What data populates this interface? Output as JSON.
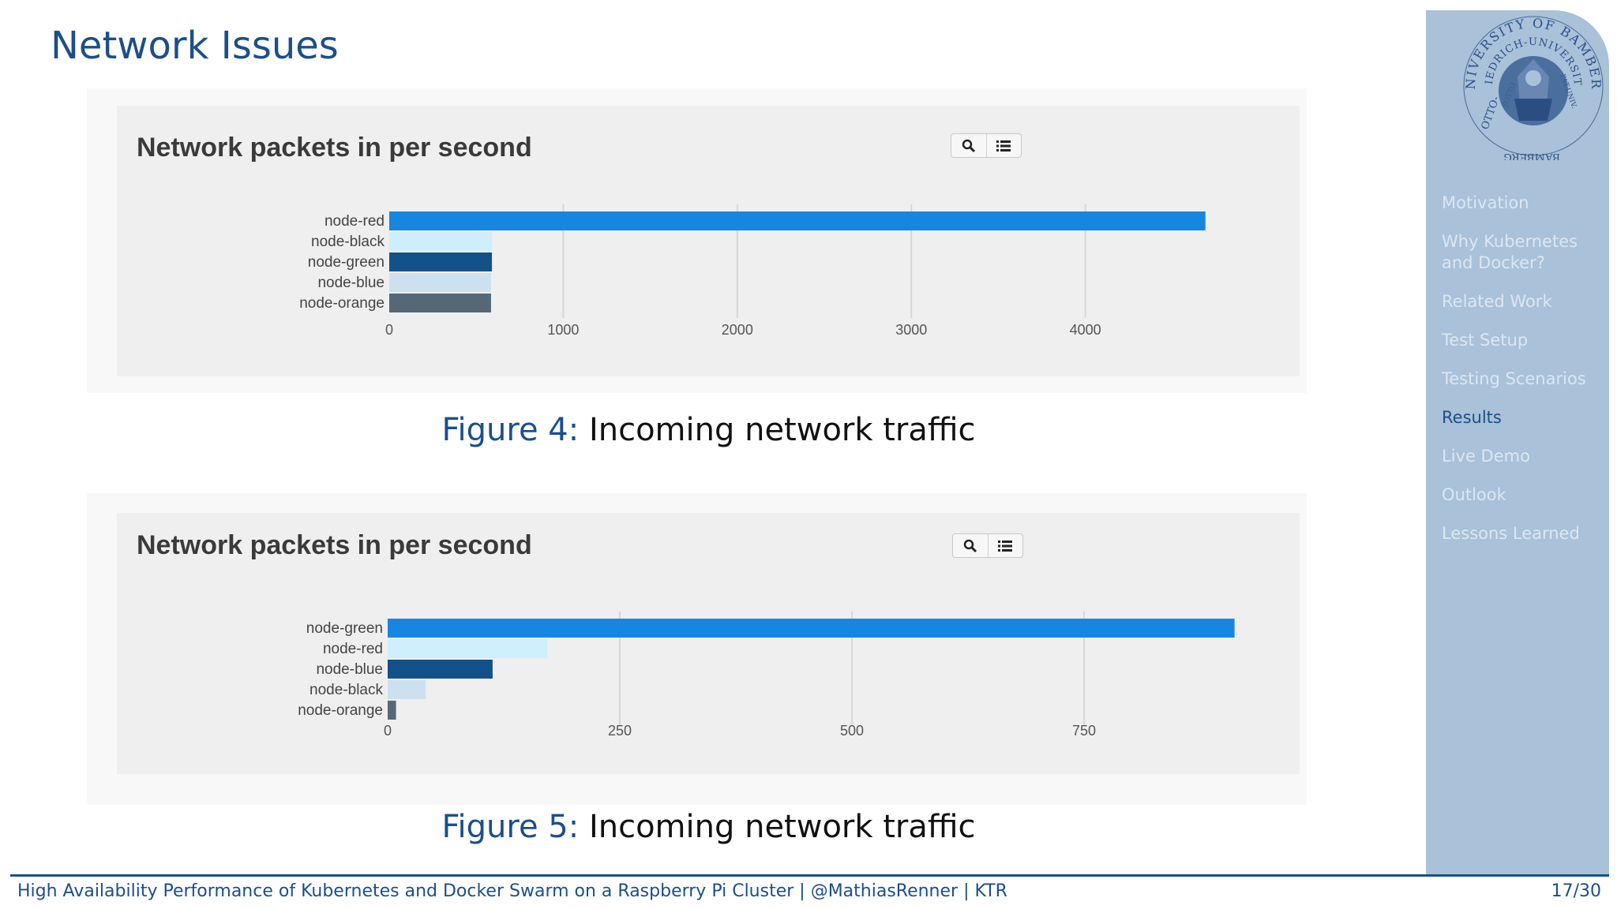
{
  "slide": {
    "title": "Network Issues",
    "footer": "High Availability Performance of Kubernetes and Docker Swarm on a Raspberry Pi Cluster | @MathiasRenner | KTR",
    "page": "17/30"
  },
  "sidebar": {
    "seal": {
      "top": "UNIVERSITY OF BAMBERG",
      "middle": "FRIEDRICH-UNIVERSITÄT BAMBERG",
      "left": "OTTO-",
      "inner_left": "SOTTO",
      "inner_right": "PAT.UNIV.",
      "bottom": "BAMBERG"
    },
    "items": [
      {
        "label": "Motivation",
        "active": false
      },
      {
        "label": "Why Kubernetes and Docker?",
        "active": false
      },
      {
        "label": "Related Work",
        "active": false
      },
      {
        "label": "Test Setup",
        "active": false
      },
      {
        "label": "Testing Scenarios",
        "active": false
      },
      {
        "label": "Results",
        "active": true
      },
      {
        "label": "Live Demo",
        "active": false
      },
      {
        "label": "Outlook",
        "active": false
      },
      {
        "label": "Lessons Learned",
        "active": false
      }
    ]
  },
  "figures": [
    {
      "label": "Figure 4:",
      "text": "Incoming network traffic"
    },
    {
      "label": "Figure 5:",
      "text": "Incoming network traffic"
    }
  ],
  "colors": {
    "accent": "#1b4f8a",
    "bar_palette": [
      "#1686e0",
      "#cfeefe",
      "#13518a",
      "#cde0f0",
      "#566878"
    ]
  },
  "chart_data": [
    {
      "type": "bar",
      "orientation": "horizontal",
      "title": "Network packets in per second",
      "categories": [
        "node-red",
        "node-black",
        "node-green",
        "node-blue",
        "node-orange"
      ],
      "values": [
        4690,
        590,
        590,
        585,
        585
      ],
      "xlim": [
        0,
        4900
      ],
      "xticks": [
        0,
        1000,
        2000,
        3000,
        4000
      ],
      "grid": true,
      "xlabel": "",
      "ylabel": "",
      "tools": [
        "search-icon",
        "list-icon"
      ]
    },
    {
      "type": "bar",
      "orientation": "horizontal",
      "title": "Network packets in per second",
      "categories": [
        "node-green",
        "node-red",
        "node-blue",
        "node-black",
        "node-orange"
      ],
      "values": [
        912,
        172,
        113,
        41,
        9
      ],
      "xlim": [
        0,
        920
      ],
      "xticks": [
        0,
        250,
        500,
        750
      ],
      "grid": true,
      "xlabel": "",
      "ylabel": "",
      "tools": [
        "search-icon",
        "list-icon"
      ]
    }
  ]
}
